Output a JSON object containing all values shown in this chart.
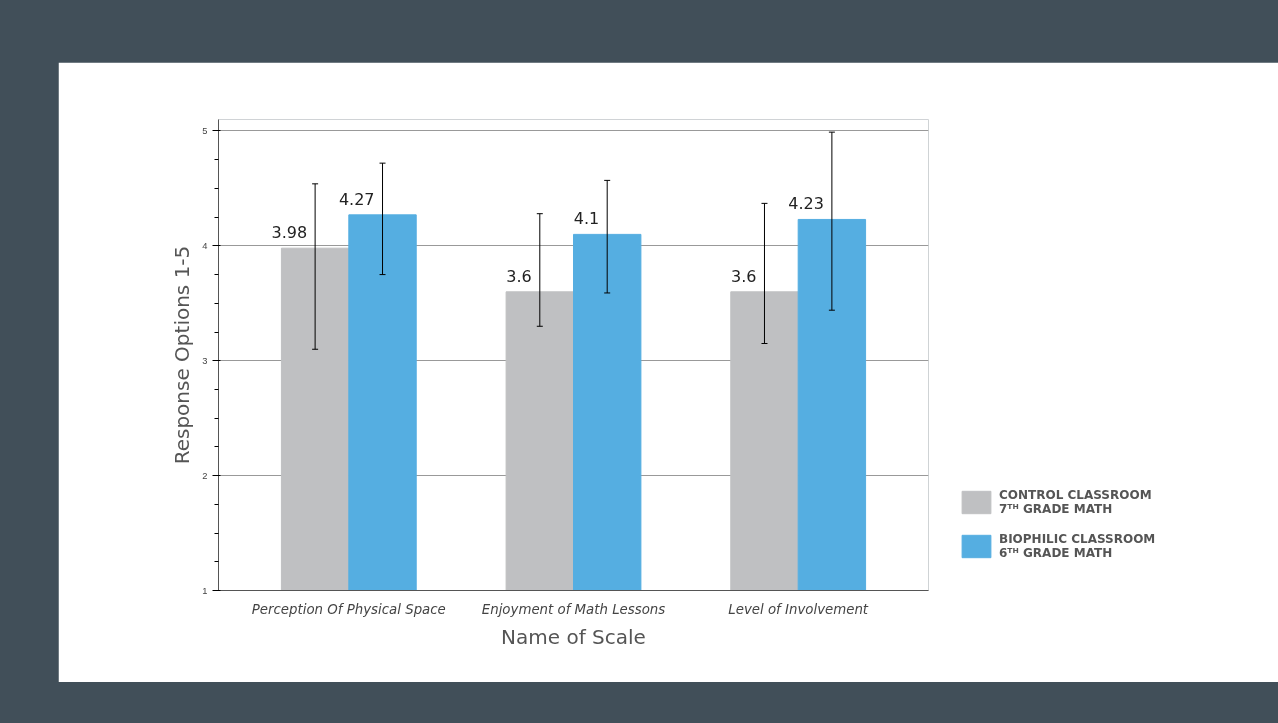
{
  "chart_data": {
    "type": "bar",
    "xlabel": "Name of Scale",
    "ylabel": "Response Options 1-5",
    "categories": [
      "Perception Of Physical Space",
      "Enjoyment of Math Lessons",
      "Level of Involvement"
    ],
    "series": [
      {
        "name": "CONTROL CLASSROOM\n7ᵀᴴ GRADE MATH",
        "color": "#bfc0c2",
        "values": [
          3.98,
          3.6,
          3.6
        ],
        "errors": [
          [
            3.1,
            4.54
          ],
          [
            3.3,
            4.28
          ],
          [
            3.15,
            4.37
          ]
        ]
      },
      {
        "name": "BIOPHILIC CLASSROOM\n6ᵀᴴ GRADE MATH",
        "color": "#55aee1",
        "values": [
          4.27,
          4.1,
          4.23
        ],
        "errors": [
          [
            3.75,
            4.72
          ],
          [
            3.59,
            4.57
          ],
          [
            3.44,
            4.99
          ]
        ]
      }
    ],
    "ylim": [
      1,
      5.1
    ],
    "yticks": [
      1,
      2,
      3,
      4,
      5
    ],
    "grid": "y",
    "legend": "right",
    "data_labels": true
  }
}
